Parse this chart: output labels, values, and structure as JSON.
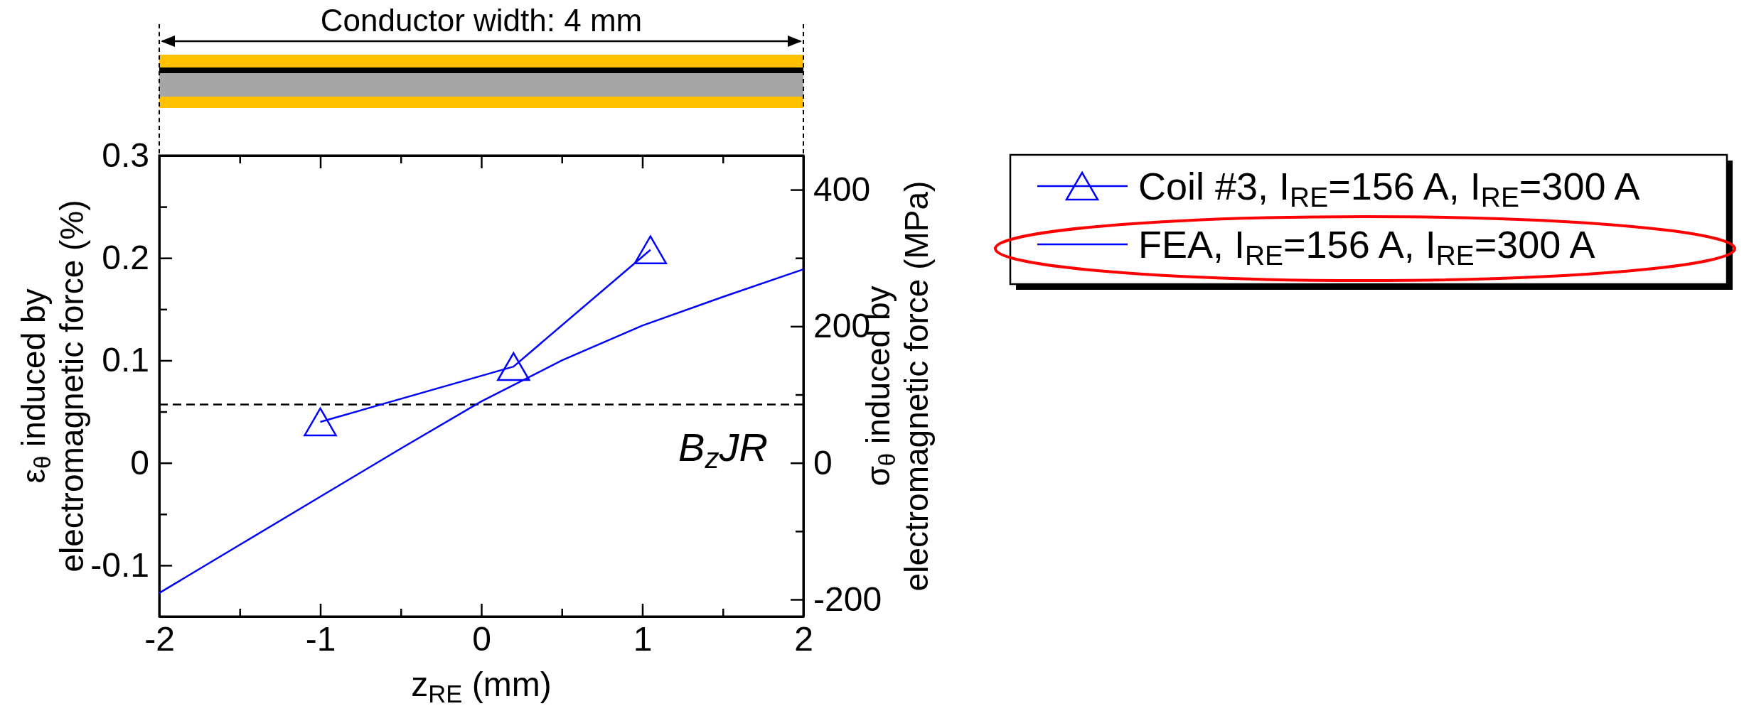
{
  "chart_data": {
    "type": "line",
    "xlabel": "z$_{RE}$ (mm)",
    "ylabel": "ε$_{θ}$ induced by\nelectromagnetic force (%)",
    "y2label": "σ$_{θ}$ induced by\nelectromagnetic force (MPa)",
    "annotations": [
      "Conductor width: 4 mm"
    ],
    "xlim": [
      -2,
      2
    ],
    "xticks": [
      -2,
      {
        "value": -1.5,
        "label": null
      },
      -1,
      {
        "value": -0.5,
        "label": null
      },
      0,
      {
        "value": 0.5,
        "label": null
      },
      1,
      {
        "value": 1.5,
        "label": null
      },
      2
    ],
    "ylim": [
      -0.15,
      0.3
    ],
    "yticks": [
      -0.1,
      {
        "value": -0.05,
        "label": null
      },
      0,
      {
        "value": 0.05,
        "label": null
      },
      0.1,
      {
        "value": 0.15,
        "label": null
      },
      0.2,
      {
        "value": 0.25,
        "label": null
      },
      0.3
    ],
    "y2lim": [
      -225,
      450
    ],
    "y2ticks": [
      -200,
      {
        "value": -100,
        "label": null
      },
      0,
      {
        "value": 100,
        "label": null
      },
      200,
      {
        "value": 300,
        "label": null
      },
      400
    ],
    "ref_lines": [
      {
        "axis": "y",
        "value": 0.057,
        "label": "B$_{z}$JR",
        "color": "#000000",
        "line_style": "dashed"
      }
    ],
    "legend": "top right",
    "grid": false,
    "series": [
      {
        "name": "Coil #3, I$_{RE}$=156 A, I$_{RE}$=300 A",
        "color": "#0000ff",
        "marker": "triangle",
        "x": [
          -1,
          0.2,
          1.05
        ],
        "values": [
          0.04,
          0.094,
          0.208
        ]
      },
      {
        "name": "FEA, I$_{RE}$=156 A, I$_{RE}$=300 A",
        "color": "#0000ff",
        "marker": "none",
        "x": [
          -2,
          -1.5,
          -1,
          -0.5,
          0,
          0.5,
          1,
          1.5,
          2
        ],
        "values": [
          -0.127,
          -0.08,
          -0.033,
          0.014,
          0.06,
          0.1,
          0.134,
          0.162,
          0.189
        ]
      }
    ]
  }
}
